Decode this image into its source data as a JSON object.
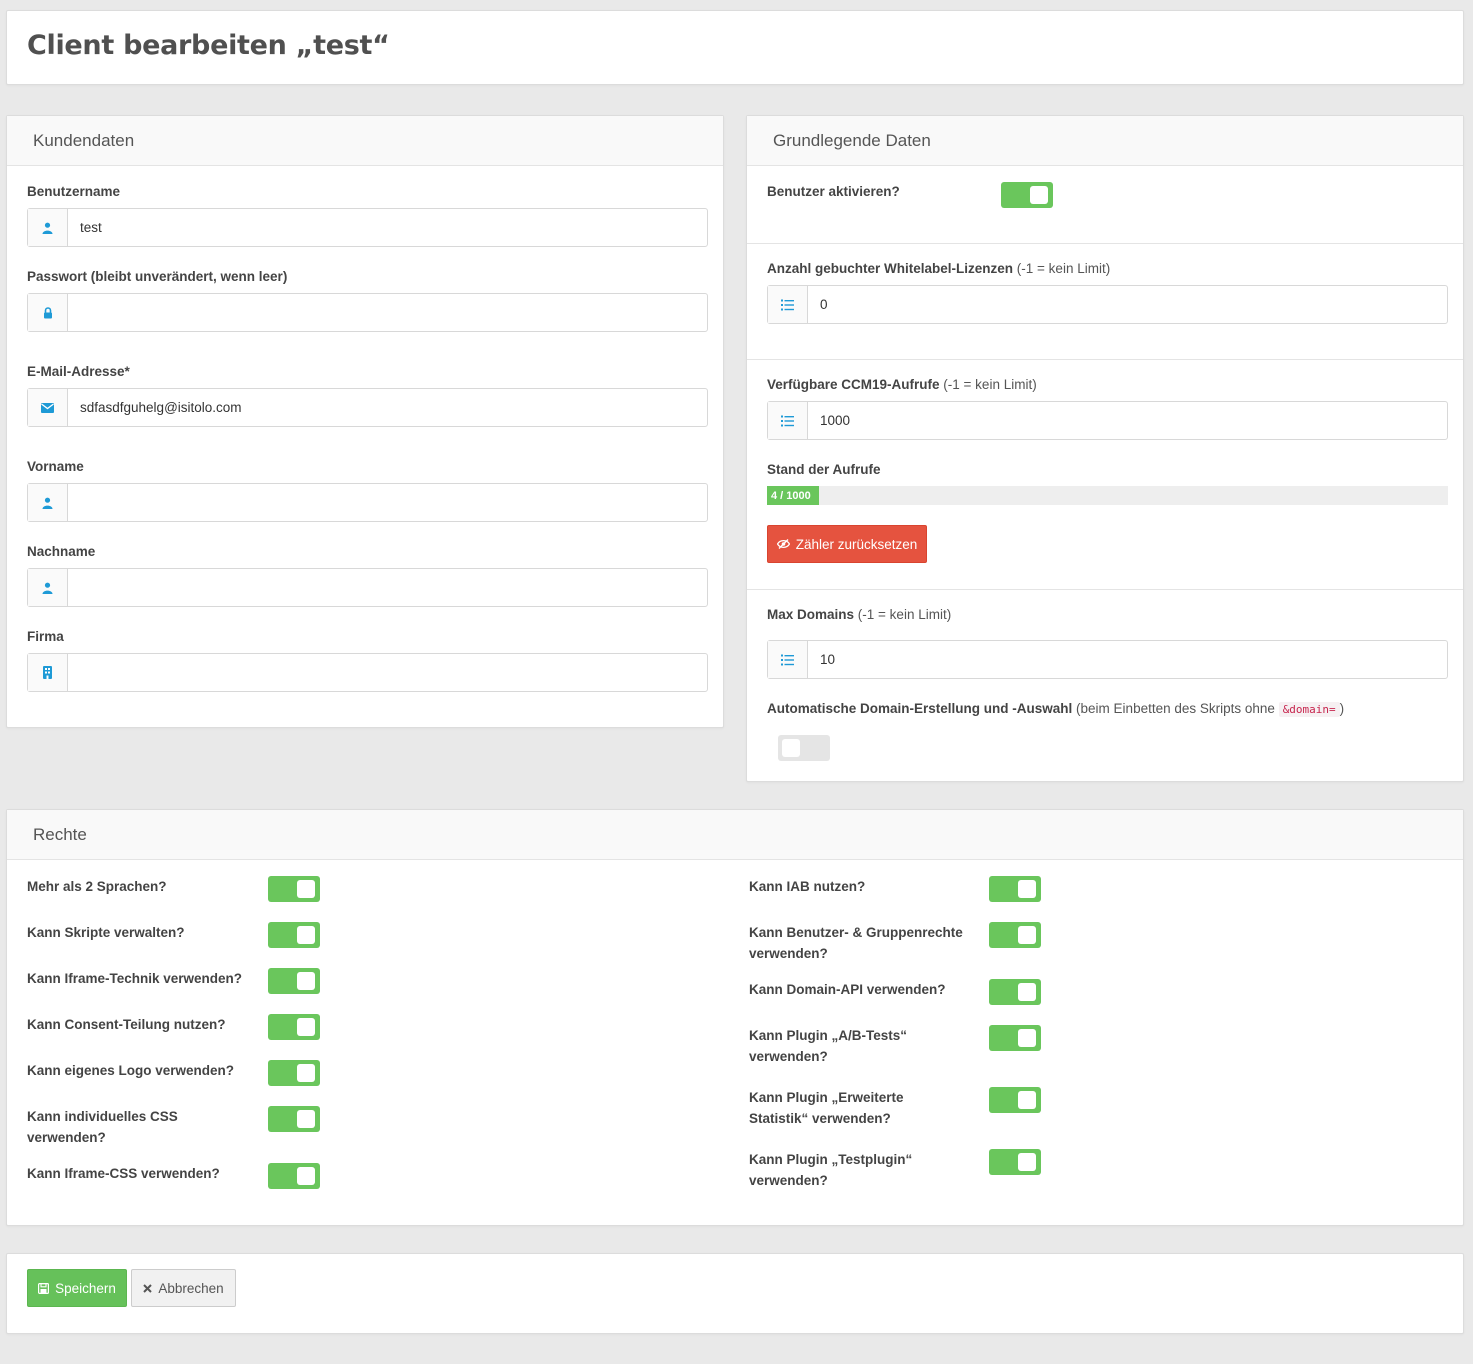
{
  "page": {
    "title": "Client bearbeiten „test“"
  },
  "kundendaten": {
    "header": "Kundendaten",
    "username": {
      "label": "Benutzername",
      "value": "test",
      "icon": "user-icon"
    },
    "password": {
      "label": "Passwort (bleibt unverändert, wenn leer)",
      "value": "",
      "icon": "lock-icon"
    },
    "email": {
      "label": "E-Mail-Adresse*",
      "value": "sdfasdfguhelg@isitolo.com",
      "icon": "envelope-icon"
    },
    "firstname": {
      "label": "Vorname",
      "value": "",
      "icon": "user-icon"
    },
    "lastname": {
      "label": "Nachname",
      "value": "",
      "icon": "user-icon"
    },
    "company": {
      "label": "Firma",
      "value": "",
      "icon": "building-icon"
    }
  },
  "grunddaten": {
    "header": "Grundlegende Daten",
    "activate": {
      "label": "Benutzer aktivieren?",
      "on": true
    },
    "whitelabel": {
      "label": "Anzahl gebuchter Whitelabel-Lizenzen",
      "hint": "(-1 = kein Limit)",
      "value": "0",
      "icon": "list-ol-icon"
    },
    "calls": {
      "label": "Verfügbare CCM19-Aufrufe",
      "hint": "(-1 = kein Limit)",
      "value": "1000",
      "icon": "list-ol-icon"
    },
    "calls_status": {
      "label": "Stand der Aufrufe",
      "progress_text": "4 / 1000",
      "used": 4,
      "total": 1000
    },
    "reset_button": "Zähler zurücksetzen",
    "max_domains": {
      "label": "Max Domains",
      "hint": "(-1 = kein Limit)",
      "value": "10",
      "icon": "list-ol-icon"
    },
    "auto_domain": {
      "label": "Automatische Domain-Erstellung und -Auswahl",
      "hint_pre": "(beim Einbetten des Skripts ohne",
      "code": "&domain=",
      "hint_post": ")",
      "on": false
    }
  },
  "rechte": {
    "header": "Rechte",
    "left": [
      {
        "label": "Mehr als 2 Sprachen?",
        "on": true
      },
      {
        "label": "Kann Skripte verwalten?",
        "on": true
      },
      {
        "label": "Kann Iframe-Technik verwenden?",
        "on": true
      },
      {
        "label": "Kann Consent-Teilung nutzen?",
        "on": true
      },
      {
        "label": "Kann eigenes Logo verwenden?",
        "on": true
      },
      {
        "label": "Kann individuelles CSS verwenden?",
        "on": true
      },
      {
        "label": "Kann Iframe-CSS verwenden?",
        "on": true
      }
    ],
    "right": [
      {
        "label": "Kann IAB nutzen?",
        "on": true
      },
      {
        "label": "Kann Benutzer- & Gruppenrechte verwenden?",
        "on": true
      },
      {
        "label": "Kann Domain-API verwenden?",
        "on": true
      },
      {
        "label": "Kann Plugin „A/B-Tests“ verwenden?",
        "on": true
      },
      {
        "label": "Kann Plugin „Erweiterte Statistik“ verwenden?",
        "on": true
      },
      {
        "label": "Kann Plugin „Testplugin“ verwenden?",
        "on": true
      }
    ]
  },
  "actions": {
    "save": "Speichern",
    "cancel": "Abbrechen"
  },
  "colors": {
    "toggle_on": "#6ac65c",
    "danger": "#e5533f",
    "success": "#66c15a",
    "icon_blue": "#1e9ad6"
  }
}
